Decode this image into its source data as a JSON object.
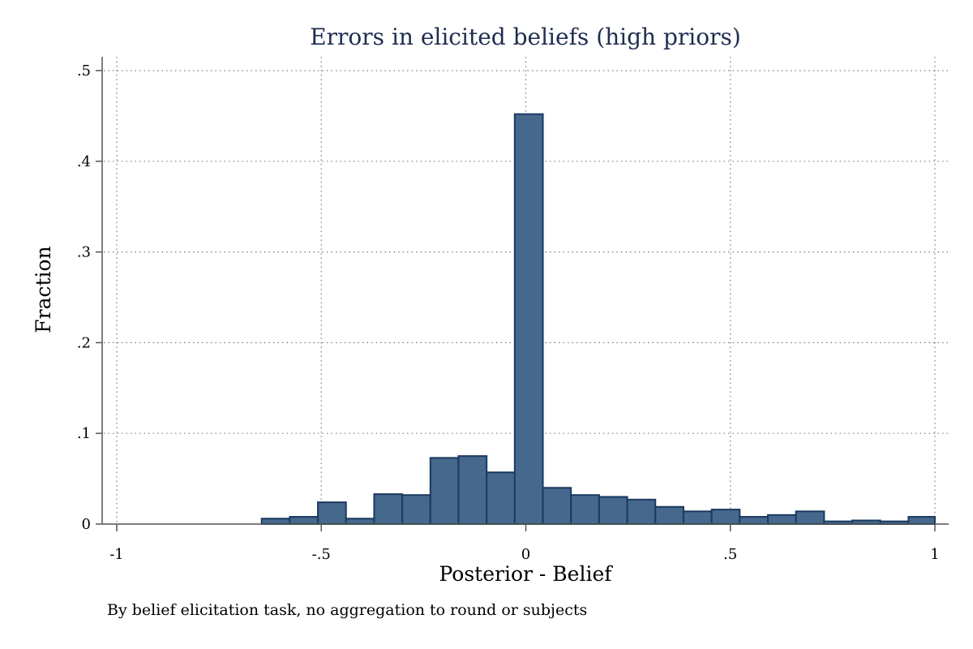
{
  "chart_data": {
    "type": "bar",
    "title": "Errors in elicited beliefs (high priors)",
    "xlabel": "Posterior - Belief",
    "ylabel": "Fraction",
    "note": "By belief elicitation task, no aggregation to round or subjects",
    "xlim": [
      -1,
      1
    ],
    "ylim": [
      0,
      0.5
    ],
    "x_ticks": [
      -1,
      -0.5,
      0,
      0.5,
      1
    ],
    "x_tick_labels": [
      "-1",
      "-.5",
      "0",
      ".5",
      "1"
    ],
    "y_ticks": [
      0,
      0.1,
      0.2,
      0.3,
      0.4,
      0.5
    ],
    "y_tick_labels": [
      "0",
      ".1",
      ".2",
      ".3",
      ".4",
      ".5"
    ],
    "grid": true,
    "bar_color": "#45688c",
    "bar_edge_color": "#1a3a5e",
    "title_color": "#1f2d50",
    "bins": [
      {
        "start": -0.6458,
        "end": -0.5771,
        "value": 0.006
      },
      {
        "start": -0.5771,
        "end": -0.5083,
        "value": 0.008
      },
      {
        "start": -0.5083,
        "end": -0.4396,
        "value": 0.024
      },
      {
        "start": -0.4396,
        "end": -0.3708,
        "value": 0.006
      },
      {
        "start": -0.3708,
        "end": -0.3021,
        "value": 0.033
      },
      {
        "start": -0.3021,
        "end": -0.2333,
        "value": 0.032
      },
      {
        "start": -0.2333,
        "end": -0.1646,
        "value": 0.073
      },
      {
        "start": -0.1646,
        "end": -0.0958,
        "value": 0.075
      },
      {
        "start": -0.0958,
        "end": -0.0271,
        "value": 0.057
      },
      {
        "start": -0.0271,
        "end": 0.0417,
        "value": 0.452
      },
      {
        "start": 0.0417,
        "end": 0.1104,
        "value": 0.04
      },
      {
        "start": 0.1104,
        "end": 0.1792,
        "value": 0.032
      },
      {
        "start": 0.1792,
        "end": 0.2479,
        "value": 0.03
      },
      {
        "start": 0.2479,
        "end": 0.3167,
        "value": 0.027
      },
      {
        "start": 0.3167,
        "end": 0.3854,
        "value": 0.019
      },
      {
        "start": 0.3854,
        "end": 0.4542,
        "value": 0.014
      },
      {
        "start": 0.4542,
        "end": 0.5229,
        "value": 0.016
      },
      {
        "start": 0.5229,
        "end": 0.5917,
        "value": 0.008
      },
      {
        "start": 0.5917,
        "end": 0.6604,
        "value": 0.01
      },
      {
        "start": 0.6604,
        "end": 0.7292,
        "value": 0.014
      },
      {
        "start": 0.7292,
        "end": 0.7979,
        "value": 0.003
      },
      {
        "start": 0.7979,
        "end": 0.8667,
        "value": 0.004
      },
      {
        "start": 0.8667,
        "end": 0.9354,
        "value": 0.003
      },
      {
        "start": 0.9354,
        "end": 1.0,
        "value": 0.008
      }
    ]
  }
}
